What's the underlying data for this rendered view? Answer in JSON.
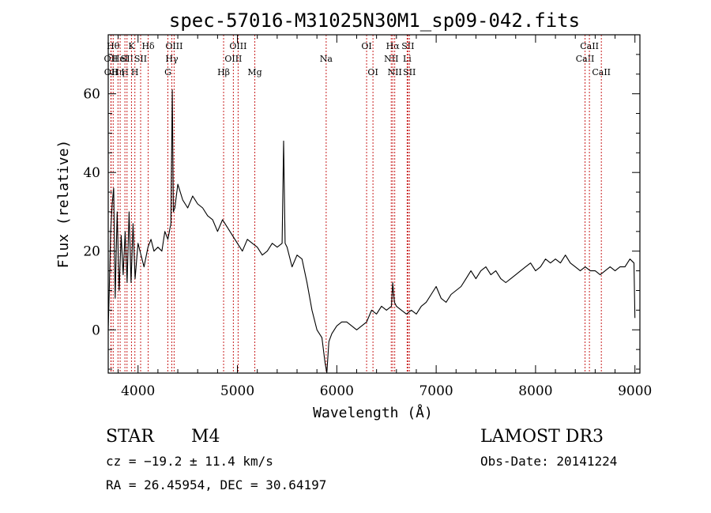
{
  "chart_data": {
    "type": "line",
    "title": "spec-57016-M31025N30M1_sp09-042.fits",
    "xlabel": "Wavelength (Å)",
    "ylabel": "Flux (relative)",
    "xlim": [
      3700,
      9050
    ],
    "ylim": [
      -11,
      75
    ],
    "xticks": [
      4000,
      5000,
      6000,
      7000,
      8000,
      9000
    ],
    "yticks": [
      0,
      20,
      40,
      60
    ],
    "spectrum_points": [
      [
        3700,
        0
      ],
      [
        3710,
        10
      ],
      [
        3725,
        25
      ],
      [
        3740,
        32
      ],
      [
        3755,
        36
      ],
      [
        3770,
        8
      ],
      [
        3790,
        30
      ],
      [
        3810,
        10
      ],
      [
        3830,
        24
      ],
      [
        3850,
        14
      ],
      [
        3870,
        25
      ],
      [
        3890,
        12
      ],
      [
        3910,
        30
      ],
      [
        3930,
        12
      ],
      [
        3950,
        27
      ],
      [
        3970,
        13
      ],
      [
        4000,
        22
      ],
      [
        4030,
        19
      ],
      [
        4060,
        16
      ],
      [
        4100,
        21
      ],
      [
        4130,
        23
      ],
      [
        4160,
        20
      ],
      [
        4200,
        21
      ],
      [
        4240,
        20
      ],
      [
        4270,
        25
      ],
      [
        4300,
        23
      ],
      [
        4330,
        27
      ],
      [
        4345,
        61
      ],
      [
        4355,
        30
      ],
      [
        4370,
        31
      ],
      [
        4400,
        37
      ],
      [
        4450,
        33
      ],
      [
        4500,
        31
      ],
      [
        4550,
        34
      ],
      [
        4600,
        32
      ],
      [
        4650,
        31
      ],
      [
        4700,
        29
      ],
      [
        4750,
        28
      ],
      [
        4800,
        25
      ],
      [
        4850,
        28
      ],
      [
        4900,
        26
      ],
      [
        4950,
        24
      ],
      [
        5000,
        22
      ],
      [
        5050,
        20
      ],
      [
        5100,
        23
      ],
      [
        5150,
        22
      ],
      [
        5200,
        21
      ],
      [
        5250,
        19
      ],
      [
        5300,
        20
      ],
      [
        5350,
        22
      ],
      [
        5400,
        21
      ],
      [
        5450,
        22
      ],
      [
        5465,
        48
      ],
      [
        5480,
        22
      ],
      [
        5500,
        21
      ],
      [
        5550,
        16
      ],
      [
        5600,
        19
      ],
      [
        5650,
        18
      ],
      [
        5700,
        12
      ],
      [
        5750,
        5
      ],
      [
        5800,
        0
      ],
      [
        5850,
        -2
      ],
      [
        5880,
        -8
      ],
      [
        5900,
        -11
      ],
      [
        5920,
        -3
      ],
      [
        5950,
        -1
      ],
      [
        6000,
        1
      ],
      [
        6050,
        2
      ],
      [
        6100,
        2
      ],
      [
        6150,
        1
      ],
      [
        6200,
        0
      ],
      [
        6250,
        1
      ],
      [
        6300,
        2
      ],
      [
        6350,
        5
      ],
      [
        6400,
        4
      ],
      [
        6450,
        6
      ],
      [
        6500,
        5
      ],
      [
        6550,
        6
      ],
      [
        6563,
        12
      ],
      [
        6580,
        7
      ],
      [
        6600,
        6
      ],
      [
        6650,
        5
      ],
      [
        6700,
        4
      ],
      [
        6750,
        5
      ],
      [
        6800,
        4
      ],
      [
        6850,
        6
      ],
      [
        6900,
        7
      ],
      [
        6950,
        9
      ],
      [
        7000,
        11
      ],
      [
        7050,
        8
      ],
      [
        7100,
        7
      ],
      [
        7150,
        9
      ],
      [
        7200,
        10
      ],
      [
        7250,
        11
      ],
      [
        7300,
        13
      ],
      [
        7350,
        15
      ],
      [
        7400,
        13
      ],
      [
        7450,
        15
      ],
      [
        7500,
        16
      ],
      [
        7550,
        14
      ],
      [
        7600,
        15
      ],
      [
        7650,
        13
      ],
      [
        7700,
        12
      ],
      [
        7750,
        13
      ],
      [
        7800,
        14
      ],
      [
        7850,
        15
      ],
      [
        7900,
        16
      ],
      [
        7950,
        17
      ],
      [
        8000,
        15
      ],
      [
        8050,
        16
      ],
      [
        8100,
        18
      ],
      [
        8150,
        17
      ],
      [
        8200,
        18
      ],
      [
        8250,
        17
      ],
      [
        8300,
        19
      ],
      [
        8350,
        17
      ],
      [
        8400,
        16
      ],
      [
        8450,
        15
      ],
      [
        8500,
        16
      ],
      [
        8550,
        15
      ],
      [
        8600,
        15
      ],
      [
        8650,
        14
      ],
      [
        8700,
        15
      ],
      [
        8750,
        16
      ],
      [
        8800,
        15
      ],
      [
        8850,
        16
      ],
      [
        8900,
        16
      ],
      [
        8950,
        18
      ],
      [
        8990,
        17
      ],
      [
        9000,
        3
      ]
    ],
    "line_markers": [
      {
        "wavelength": 3727,
        "label": "OII",
        "row": 2
      },
      {
        "wavelength": 3729,
        "label": "OII",
        "row": 3
      },
      {
        "wavelength": 3750,
        "label": "Hθ",
        "row": 1
      },
      {
        "wavelength": 3798,
        "label": "Hη",
        "row": 3
      },
      {
        "wavelength": 3820,
        "label": "HeI",
        "row": 2
      },
      {
        "wavelength": 3868,
        "label": "H",
        "row": 3
      },
      {
        "wavelength": 3889,
        "label": "SII",
        "row": 2
      },
      {
        "wavelength": 3934,
        "label": "K",
        "row": 1
      },
      {
        "wavelength": 3968,
        "label": "H",
        "row": 3
      },
      {
        "wavelength": 4026,
        "label": "SII",
        "row": 2
      },
      {
        "wavelength": 4102,
        "label": "Hδ",
        "row": 1
      },
      {
        "wavelength": 4300,
        "label": "G",
        "row": 3
      },
      {
        "wavelength": 4340,
        "label": "Hγ",
        "row": 2
      },
      {
        "wavelength": 4363,
        "label": "OIII",
        "row": 1
      },
      {
        "wavelength": 4861,
        "label": "Hβ",
        "row": 3
      },
      {
        "wavelength": 4959,
        "label": "OIII",
        "row": 2
      },
      {
        "wavelength": 5007,
        "label": "OIII",
        "row": 1
      },
      {
        "wavelength": 5175,
        "label": "Mg",
        "row": 3
      },
      {
        "wavelength": 5893,
        "label": "Na",
        "row": 2
      },
      {
        "wavelength": 6300,
        "label": "OI",
        "row": 1
      },
      {
        "wavelength": 6364,
        "label": "OI",
        "row": 3
      },
      {
        "wavelength": 6548,
        "label": "NII",
        "row": 2
      },
      {
        "wavelength": 6563,
        "label": "Hα",
        "row": 1
      },
      {
        "wavelength": 6583,
        "label": "NII",
        "row": 3
      },
      {
        "wavelength": 6708,
        "label": "Li",
        "row": 2
      },
      {
        "wavelength": 6716,
        "label": "SII",
        "row": 1
      },
      {
        "wavelength": 6731,
        "label": "SII",
        "row": 3
      },
      {
        "wavelength": 8498,
        "label": "CaII",
        "row": 2
      },
      {
        "wavelength": 8542,
        "label": "CaII",
        "row": 1
      },
      {
        "wavelength": 8662,
        "label": "CaII",
        "row": 3
      }
    ],
    "colors": {
      "axis": "#000000",
      "line": "#000000",
      "marker": "#c81e1e"
    }
  },
  "info": {
    "class_label": "STAR",
    "subclass": "M4",
    "survey": "LAMOST DR3",
    "redshift": "cz = −19.2 ± 11.4 km/s",
    "obs_date": "Obs-Date: 20141224",
    "coords": "RA =  26.45954, DEC =  30.64197"
  }
}
